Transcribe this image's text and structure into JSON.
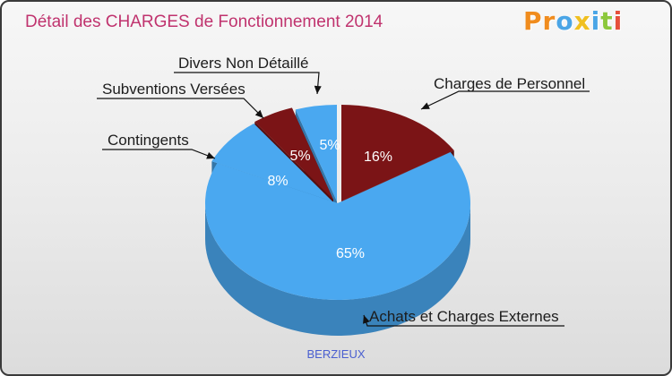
{
  "title": "Détail des CHARGES de Fonctionnement 2014",
  "logo": {
    "letters": [
      "P",
      "r",
      "o",
      "x",
      "i",
      "t",
      "i"
    ],
    "colors": [
      "#f08c1e",
      "#f08c1e",
      "#4aa5e6",
      "#f0c020",
      "#4aa5e6",
      "#8cc83c",
      "#e6503c"
    ]
  },
  "footer": "BERZIEUX",
  "chart_data": {
    "type": "pie",
    "title": "Détail des CHARGES de Fonctionnement 2014",
    "slices": [
      {
        "label": "Charges de Personnel",
        "value": 16,
        "pct_label": "16%",
        "color": "#7b1416"
      },
      {
        "label": "Achats et Charges Externes",
        "value": 65,
        "pct_label": "65%",
        "color": "#4aa8f0"
      },
      {
        "label": "Contingents",
        "value": 8,
        "pct_label": "8%",
        "color": "#4aa8f0"
      },
      {
        "label": "Subventions Versées",
        "value": 5,
        "pct_label": "5%",
        "color": "#7b1416"
      },
      {
        "label": "Divers Non Détaillé",
        "value": 5,
        "pct_label": "5%",
        "color": "#4aa8f0"
      }
    ]
  }
}
